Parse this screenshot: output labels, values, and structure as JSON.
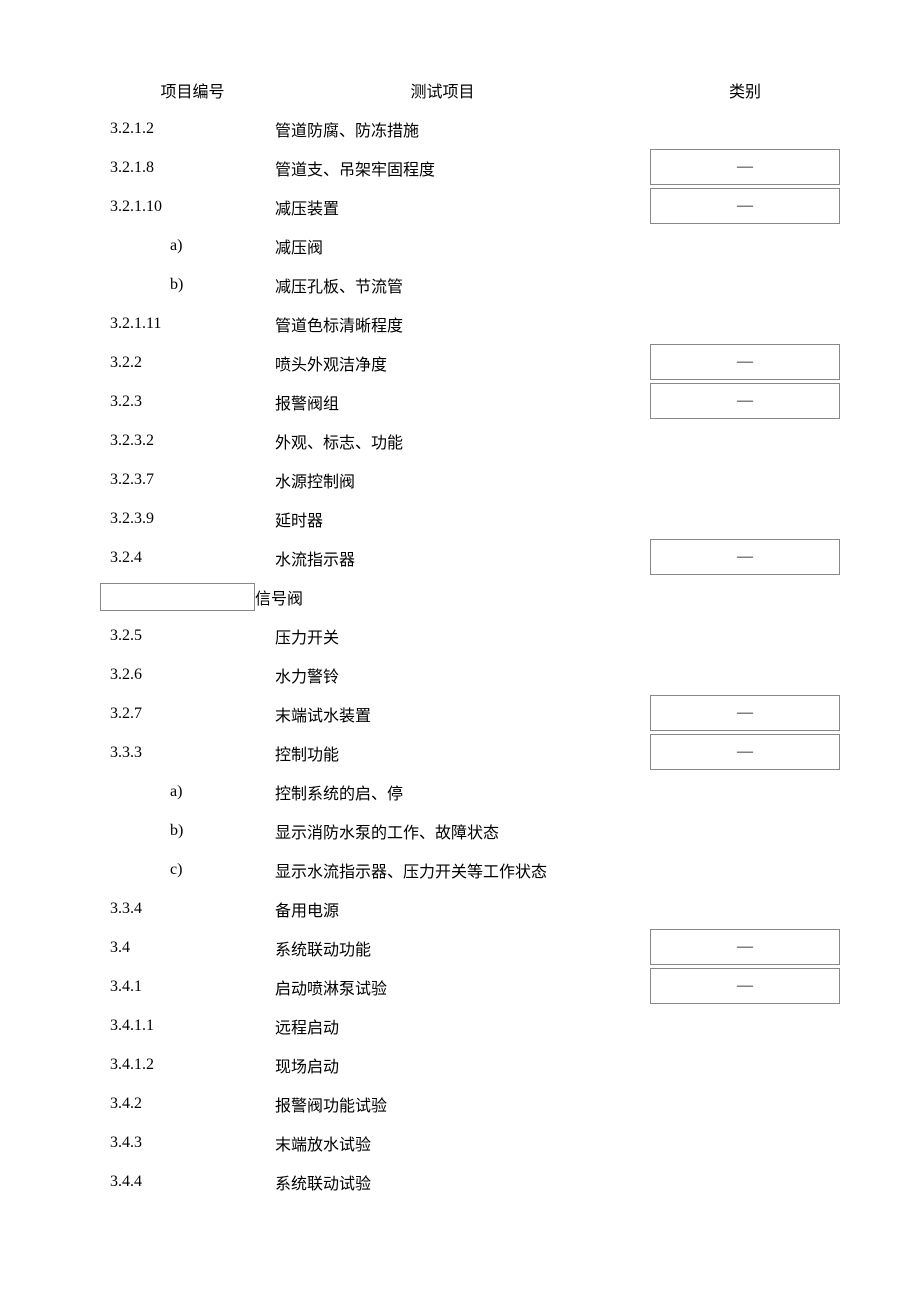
{
  "headers": {
    "id": "项目编号",
    "name": "测试项目",
    "cat": "类别"
  },
  "dash": "—",
  "rows": [
    {
      "id": "3.2.1.2",
      "name": "管道防腐、防冻措施",
      "cat": "",
      "indent": false,
      "catBox": false,
      "idBox": false
    },
    {
      "id": "3.2.1.8",
      "name": "管道支、吊架牢固程度",
      "cat": "dash",
      "indent": false,
      "catBox": true,
      "idBox": false
    },
    {
      "id": "3.2.1.10",
      "name": "减压装置",
      "cat": "dash",
      "indent": false,
      "catBox": true,
      "idBox": false
    },
    {
      "id": "a)",
      "name": "减压阀",
      "cat": "",
      "indent": true,
      "catBox": false,
      "idBox": false
    },
    {
      "id": "b)",
      "name": "减压孔板、节流管",
      "cat": "",
      "indent": true,
      "catBox": false,
      "idBox": false
    },
    {
      "id": "3.2.1.11",
      "name": "管道色标清晰程度",
      "cat": "",
      "indent": false,
      "catBox": false,
      "idBox": false
    },
    {
      "id": "3.2.2",
      "name": "喷头外观洁净度",
      "cat": "dash",
      "indent": false,
      "catBox": true,
      "idBox": false
    },
    {
      "id": "3.2.3",
      "name": "报警阀组",
      "cat": "dash",
      "indent": false,
      "catBox": true,
      "idBox": false
    },
    {
      "id": "3.2.3.2",
      "name": "外观、标志、功能",
      "cat": "",
      "indent": false,
      "catBox": false,
      "idBox": false
    },
    {
      "id": "3.2.3.7",
      "name": "水源控制阀",
      "cat": "",
      "indent": false,
      "catBox": false,
      "idBox": false
    },
    {
      "id": "3.2.3.9",
      "name": "延时器",
      "cat": "",
      "indent": false,
      "catBox": false,
      "idBox": false
    },
    {
      "id": "3.2.4",
      "name": "水流指示器",
      "cat": "dash",
      "indent": false,
      "catBox": true,
      "idBox": false
    },
    {
      "id": "",
      "name": "信号阀",
      "cat": "",
      "indent": false,
      "catBox": false,
      "idBox": true
    },
    {
      "id": "3.2.5",
      "name": "压力开关",
      "cat": "",
      "indent": false,
      "catBox": false,
      "idBox": false
    },
    {
      "id": "3.2.6",
      "name": "水力警铃",
      "cat": "",
      "indent": false,
      "catBox": false,
      "idBox": false
    },
    {
      "id": "3.2.7",
      "name": "末端试水装置",
      "cat": "dash",
      "indent": false,
      "catBox": true,
      "idBox": false
    },
    {
      "id": "3.3.3",
      "name": "控制功能",
      "cat": "dash",
      "indent": false,
      "catBox": true,
      "idBox": false
    },
    {
      "id": "a)",
      "name": "控制系统的启、停",
      "cat": "",
      "indent": true,
      "catBox": false,
      "idBox": false
    },
    {
      "id": "b)",
      "name": "显示消防水泵的工作、故障状态",
      "cat": "",
      "indent": true,
      "catBox": false,
      "idBox": false
    },
    {
      "id": "c)",
      "name": "显示水流指示器、压力开关等工作状态",
      "cat": "",
      "indent": true,
      "catBox": false,
      "idBox": false
    },
    {
      "id": "3.3.4",
      "name": "备用电源",
      "cat": "",
      "indent": false,
      "catBox": false,
      "idBox": false
    },
    {
      "id": "3.4",
      "name": "系统联动功能",
      "cat": "dash",
      "indent": false,
      "catBox": true,
      "idBox": false
    },
    {
      "id": "3.4.1",
      "name": "启动喷淋泵试验",
      "cat": "dash",
      "indent": false,
      "catBox": true,
      "idBox": false
    },
    {
      "id": "3.4.1.1",
      "name": "远程启动",
      "cat": "",
      "indent": false,
      "catBox": false,
      "idBox": false
    },
    {
      "id": "3.4.1.2",
      "name": "现场启动",
      "cat": "",
      "indent": false,
      "catBox": false,
      "idBox": false
    },
    {
      "id": "3.4.2",
      "name": "报警阀功能试验",
      "cat": "",
      "indent": false,
      "catBox": false,
      "idBox": false
    },
    {
      "id": "3.4.3",
      "name": "末端放水试验",
      "cat": "",
      "indent": false,
      "catBox": false,
      "idBox": false
    },
    {
      "id": "3.4.4",
      "name": "系统联动试验",
      "cat": "",
      "indent": false,
      "catBox": false,
      "idBox": false
    }
  ]
}
